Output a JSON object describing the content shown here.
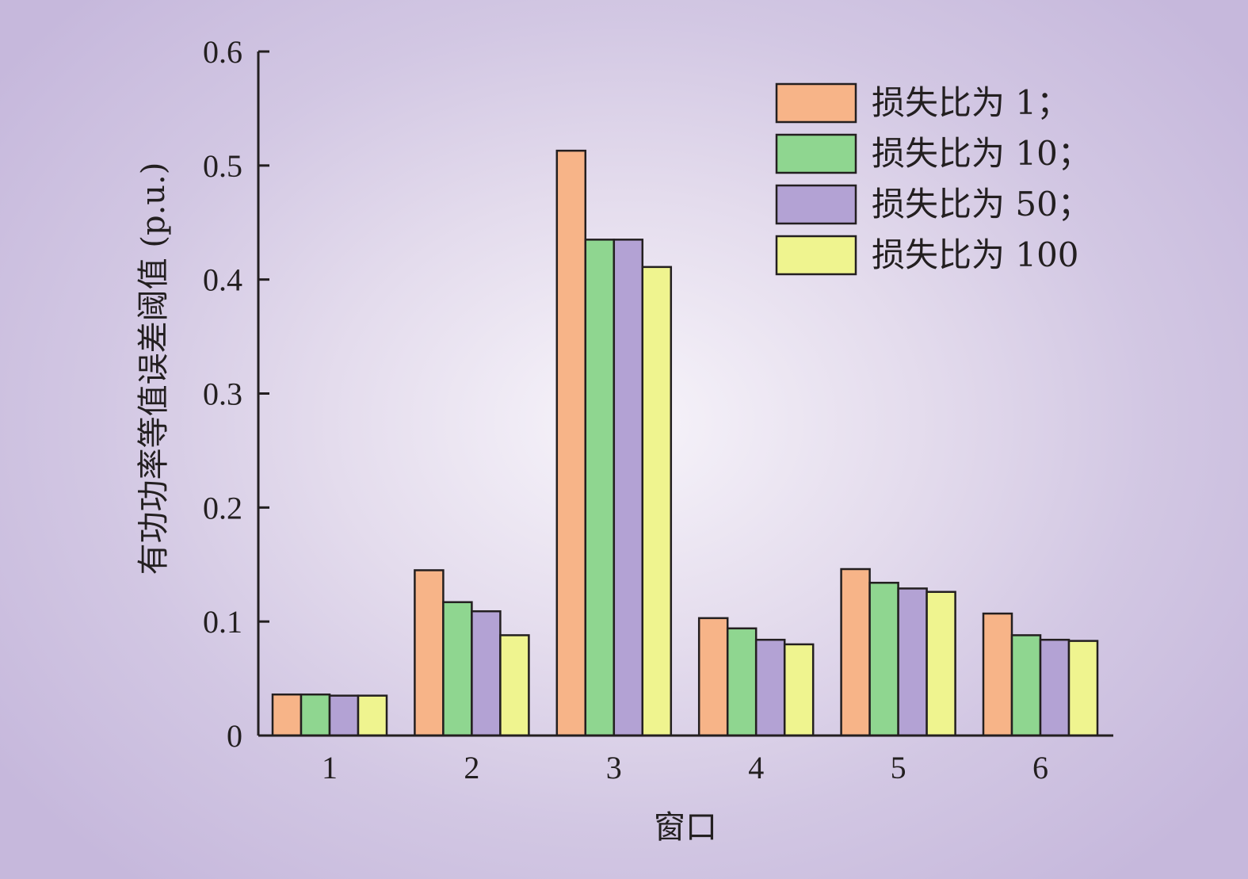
{
  "chart_data": {
    "type": "bar",
    "title": "",
    "xlabel": "窗口",
    "ylabel": "有功功率等值误差阈值 (p.u.)",
    "categories": [
      "1",
      "2",
      "3",
      "4",
      "5",
      "6"
    ],
    "ylim": [
      0,
      0.6
    ],
    "yticks": [
      "0",
      "0.1",
      "0.2",
      "0.3",
      "0.4",
      "0.5",
      "0.6"
    ],
    "legend_position": "top-right",
    "grid": false,
    "series": [
      {
        "name": "损失比为 1；",
        "color": "#f7b488",
        "values": [
          0.036,
          0.145,
          0.513,
          0.103,
          0.146,
          0.107
        ]
      },
      {
        "name": "损失比为 10；",
        "color": "#8fd690",
        "values": [
          0.036,
          0.117,
          0.435,
          0.094,
          0.134,
          0.088
        ]
      },
      {
        "name": "损失比为 50；",
        "color": "#b3a2d4",
        "values": [
          0.035,
          0.109,
          0.435,
          0.084,
          0.129,
          0.084
        ]
      },
      {
        "name": "损失比为 100",
        "color": "#eff48f",
        "values": [
          0.035,
          0.088,
          0.411,
          0.08,
          0.126,
          0.083
        ]
      }
    ]
  }
}
